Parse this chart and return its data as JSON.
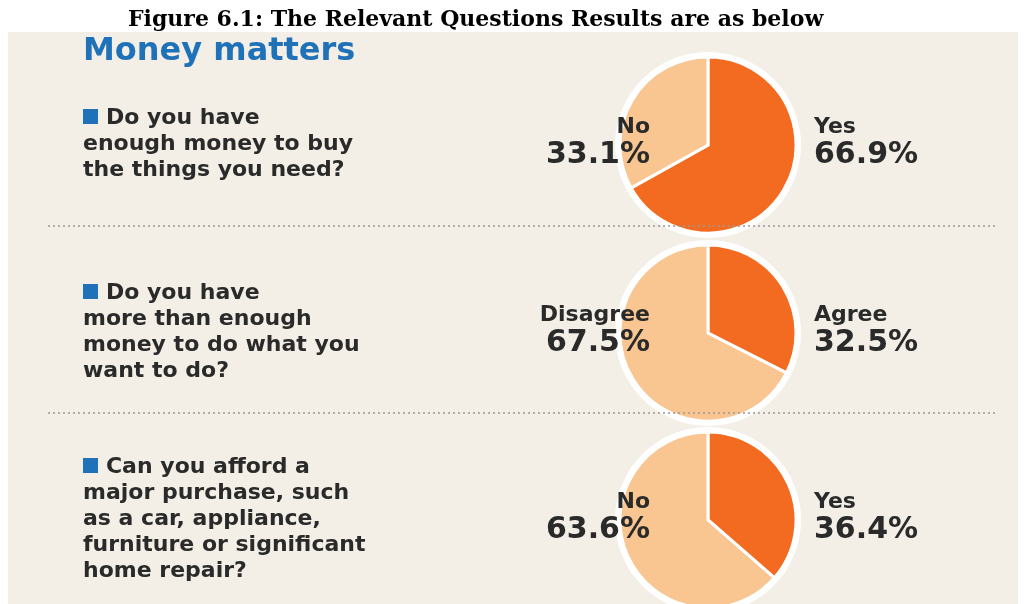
{
  "chart_data": [
    {
      "type": "pie",
      "title": "Do you have enough money to buy the things you need?",
      "annotations": [
        "Figure 6.1: The Relevant Questions Results are as below",
        "Money matters"
      ],
      "categories": [
        "Yes",
        "No"
      ],
      "values": [
        66.9,
        33.1
      ],
      "value_labels": [
        "66.9%",
        "33.1%"
      ],
      "colors": [
        "#f26b21",
        "#f9c590"
      ]
    },
    {
      "type": "pie",
      "title": "Do you have more than enough money to do what you want to do?",
      "categories": [
        "Agree",
        "Disagree"
      ],
      "values": [
        32.5,
        67.5
      ],
      "value_labels": [
        "32.5%",
        "67.5%"
      ],
      "colors": [
        "#f26b21",
        "#f9c590"
      ]
    },
    {
      "type": "pie",
      "title": "Can you afford a major purchase, such as a car, appliance, furniture or significant home repair?",
      "categories": [
        "Yes",
        "No"
      ],
      "values": [
        36.4,
        63.6
      ],
      "value_labels": [
        "36.4%",
        "63.6%"
      ],
      "colors": [
        "#f26b21",
        "#f9c590"
      ]
    }
  ]
}
